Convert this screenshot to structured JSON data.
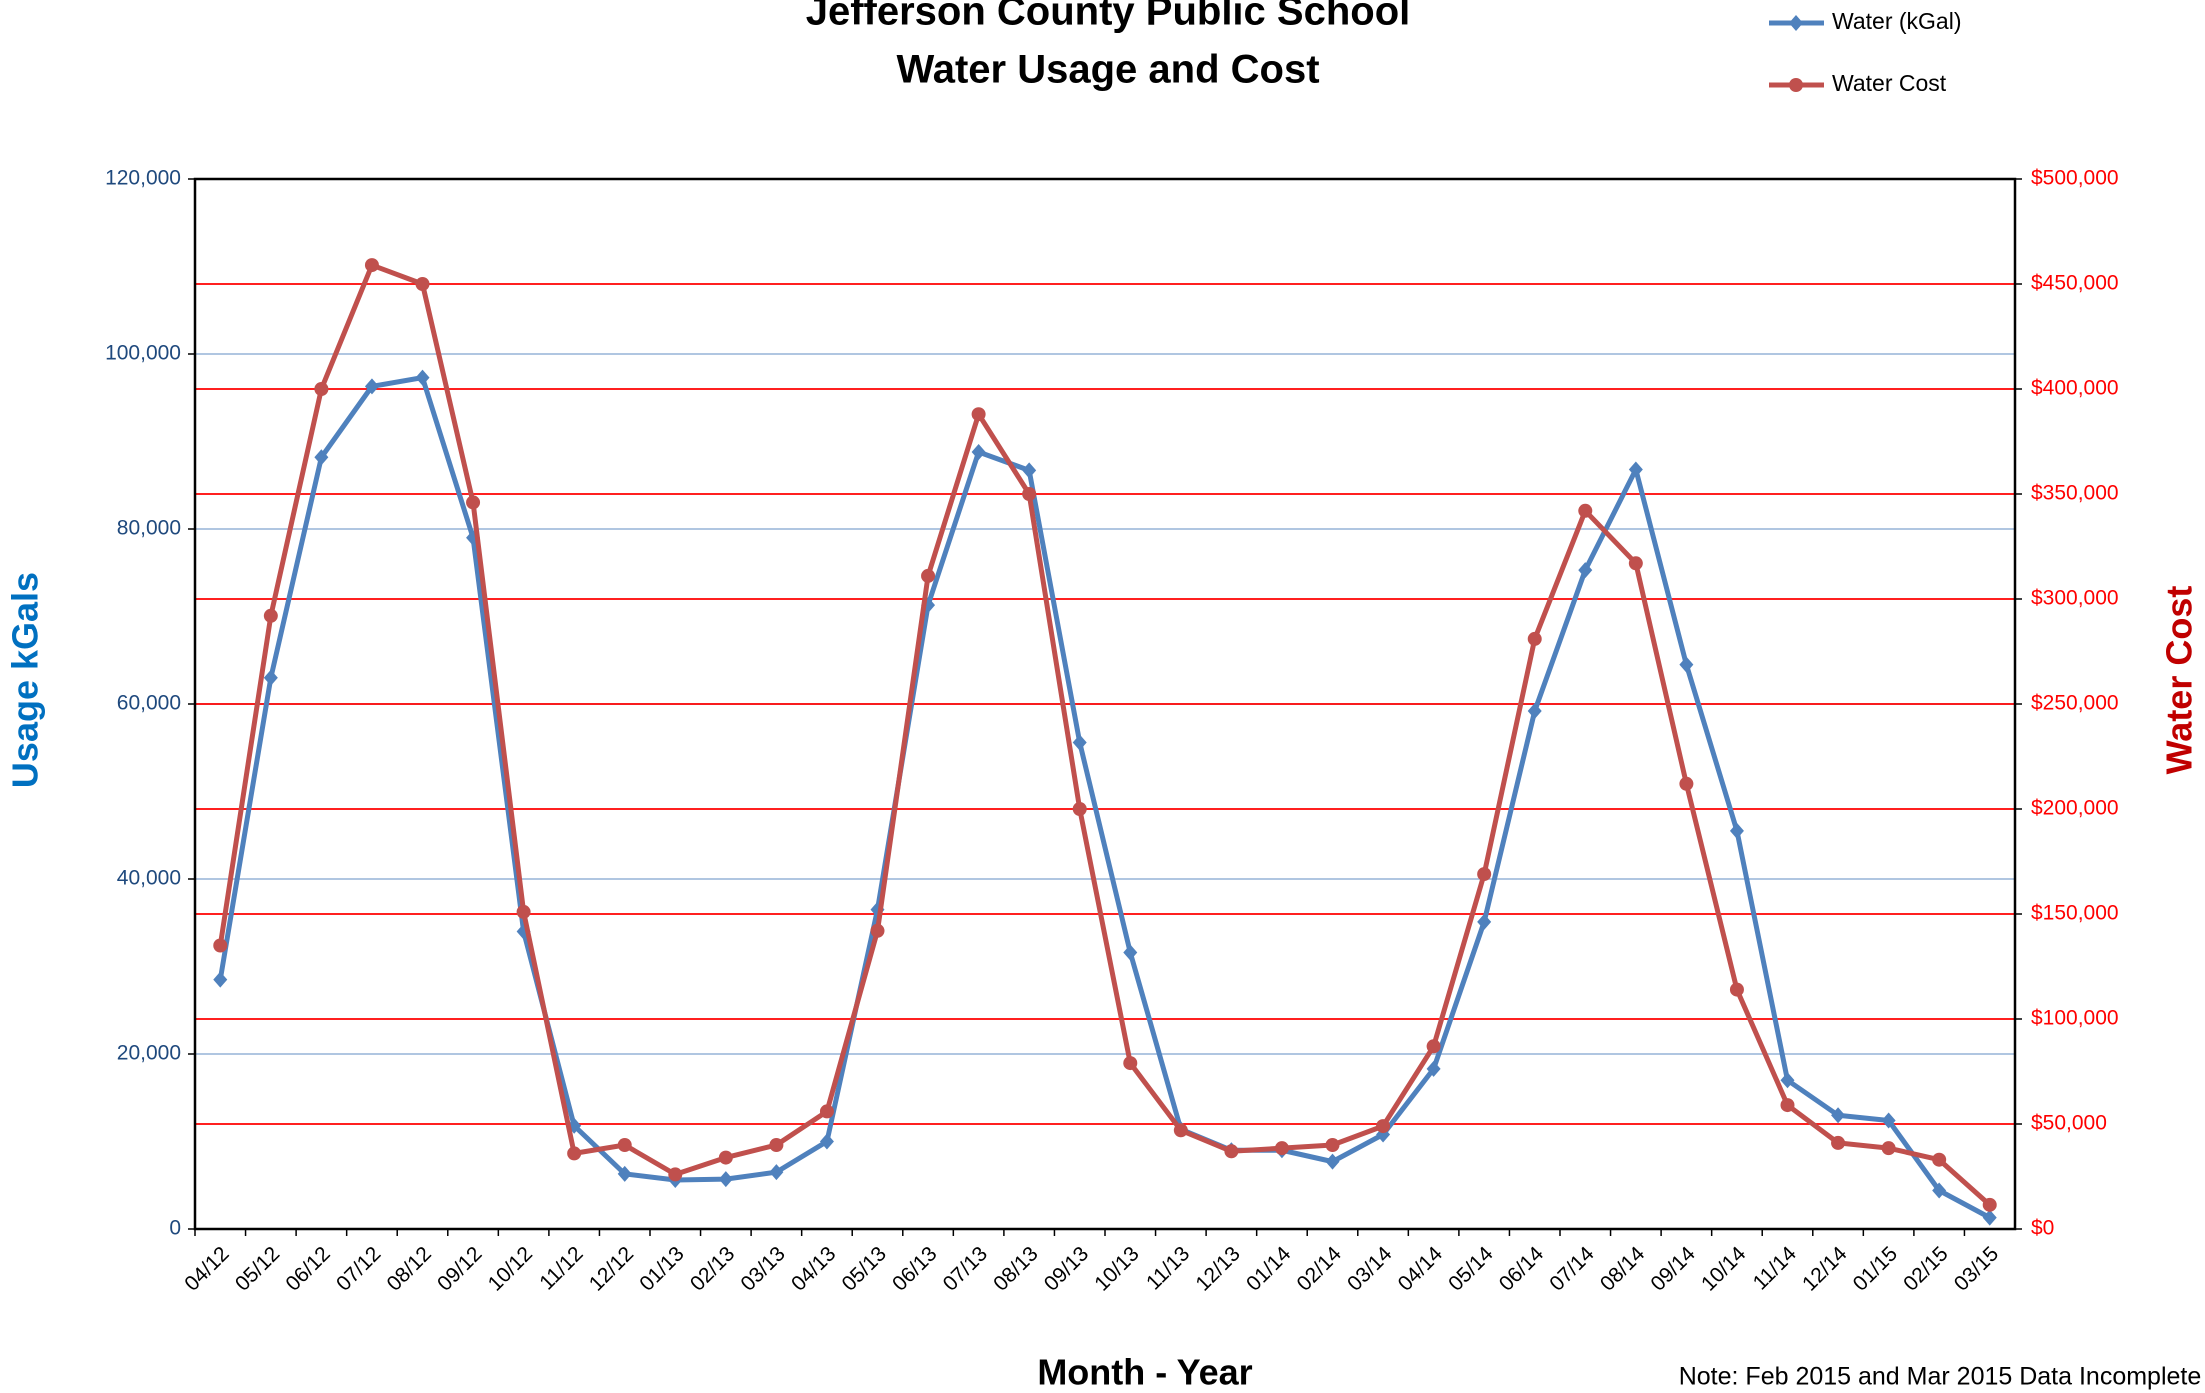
{
  "chart_data": {
    "type": "line",
    "title": "Jefferson County Public School",
    "subtitle": "Water Usage and Cost",
    "x_label": "Month - Year",
    "y_label": "Usage kGals",
    "y2_label": "Water Cost",
    "note": "Note: Feb 2015 and Mar 2015 Data Incomplete",
    "categories": [
      "04/12",
      "05/12",
      "06/12",
      "07/12",
      "08/12",
      "09/12",
      "10/12",
      "11/12",
      "12/12",
      "01/13",
      "02/13",
      "03/13",
      "04/13",
      "05/13",
      "06/13",
      "07/13",
      "08/13",
      "09/13",
      "10/13",
      "11/13",
      "12/13",
      "01/14",
      "02/14",
      "03/14",
      "04/14",
      "05/14",
      "06/14",
      "07/14",
      "08/14",
      "09/14",
      "10/14",
      "11/14",
      "12/14",
      "01/15",
      "02/15",
      "03/15"
    ],
    "series": [
      {
        "name": "Water (kGal)",
        "color": "#4f81bd",
        "marker": "diamond",
        "axis": "y",
        "values": [
          28500,
          63000,
          88200,
          96300,
          97300,
          79000,
          34000,
          11800,
          6300,
          5600,
          5700,
          6500,
          10000,
          36500,
          71300,
          88800,
          86700,
          55600,
          31600,
          11400,
          9000,
          9000,
          7700,
          10800,
          18300,
          35100,
          59200,
          75300,
          86800,
          64500,
          45500,
          17000,
          13000,
          12400,
          4400,
          1300
        ]
      },
      {
        "name": "Water Cost",
        "color": "#c0504d",
        "marker": "circle",
        "axis": "y2",
        "values": [
          135000,
          292000,
          400000,
          459000,
          450000,
          346000,
          151000,
          36000,
          40000,
          26000,
          34000,
          40000,
          56000,
          142000,
          311000,
          388000,
          350000,
          200000,
          79000,
          47000,
          37000,
          38500,
          40000,
          49000,
          87000,
          169000,
          281000,
          342000,
          317000,
          212000,
          114000,
          59000,
          41000,
          38500,
          33000,
          11500
        ]
      }
    ],
    "ylim": [
      0,
      120000
    ],
    "yticks": [
      0,
      {
        "value": 20000,
        "label": "20,000"
      },
      {
        "value": 40000,
        "label": "40,000"
      },
      {
        "value": 60000,
        "label": "60,000"
      },
      {
        "value": 80000,
        "label": "80,000"
      },
      {
        "value": 100000,
        "label": "100,000"
      },
      {
        "value": 120000,
        "label": "120,000"
      }
    ],
    "y2lim": [
      0,
      500000
    ],
    "y2ticks": [
      {
        "value": 0,
        "label": "$0"
      },
      {
        "value": 50000,
        "label": "$50,000"
      },
      {
        "value": 100000,
        "label": "$100,000"
      },
      {
        "value": 150000,
        "label": "$150,000"
      },
      {
        "value": 200000,
        "label": "$200,000"
      },
      {
        "value": 250000,
        "label": "$250,000"
      },
      {
        "value": 300000,
        "label": "$300,000"
      },
      {
        "value": 350000,
        "label": "$350,000"
      },
      {
        "value": 400000,
        "label": "$400,000"
      },
      {
        "value": 450000,
        "label": "$450,000"
      },
      {
        "value": 500000,
        "label": "$500,000"
      }
    ],
    "grid_color": "#95b3d7",
    "y2_grid_color": "#ff0000",
    "legend": "top-right"
  }
}
